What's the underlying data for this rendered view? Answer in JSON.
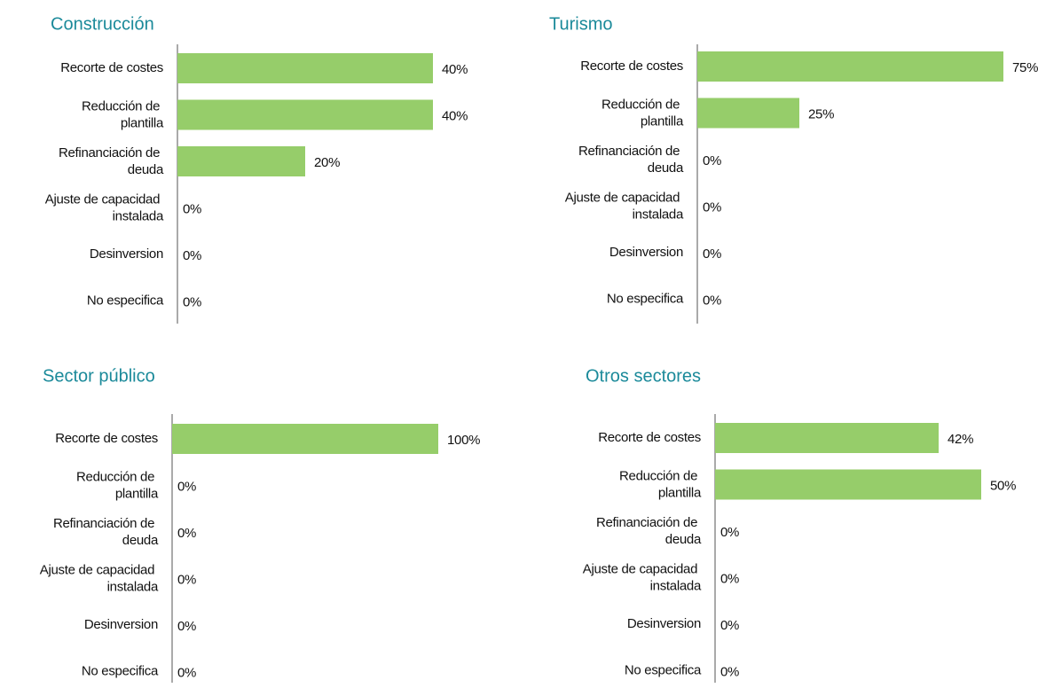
{
  "chart_data": [
    {
      "type": "bar",
      "orientation": "horizontal",
      "title": "Construcción",
      "color": "#96cd6a",
      "categories": [
        "Recorte de costes",
        "Reducción de plantilla",
        "Refinanciación de deuda",
        "Ajuste de capacidad instalada",
        "Desinversion",
        "No especifica"
      ],
      "values": [
        40,
        40,
        20,
        0,
        0,
        0
      ],
      "value_labels": [
        "40%",
        "40%",
        "20%",
        "0%",
        "0%",
        "0%"
      ],
      "xlim": [
        0,
        100
      ]
    },
    {
      "type": "bar",
      "orientation": "horizontal",
      "title": "Turismo",
      "color": "#96cd6a",
      "categories": [
        "Recorte de costes",
        "Reducción de plantilla",
        "Refinanciación de deuda",
        "Ajuste de capacidad instalada",
        "Desinversion",
        "No especifica"
      ],
      "values": [
        75,
        25,
        0,
        0,
        0,
        0
      ],
      "value_labels": [
        "75%",
        "25%",
        "0%",
        "0%",
        "0%",
        "0%"
      ],
      "xlim": [
        0,
        100
      ]
    },
    {
      "type": "bar",
      "orientation": "horizontal",
      "title": "Sector público",
      "color": "#96cd6a",
      "categories": [
        "Recorte de costes",
        "Reducción de plantilla",
        "Refinanciación de deuda",
        "Ajuste de capacidad instalada",
        "Desinversion",
        "No especifica"
      ],
      "values": [
        100,
        0,
        0,
        0,
        0,
        0
      ],
      "value_labels": [
        "100%",
        "0%",
        "0%",
        "0%",
        "0%",
        "0%"
      ],
      "xlim": [
        0,
        100
      ]
    },
    {
      "type": "bar",
      "orientation": "horizontal",
      "title": "Otros sectores",
      "color": "#96cd6a",
      "categories": [
        "Recorte de costes",
        "Reducción de plantilla",
        "Refinanciación de deuda",
        "Ajuste de capacidad instalada",
        "Desinversion",
        "No especifica"
      ],
      "values": [
        42,
        50,
        0,
        0,
        0,
        0
      ],
      "value_labels": [
        "42%",
        "50%",
        "0%",
        "0%",
        "0%",
        "0%"
      ],
      "xlim": [
        0,
        100
      ]
    }
  ]
}
